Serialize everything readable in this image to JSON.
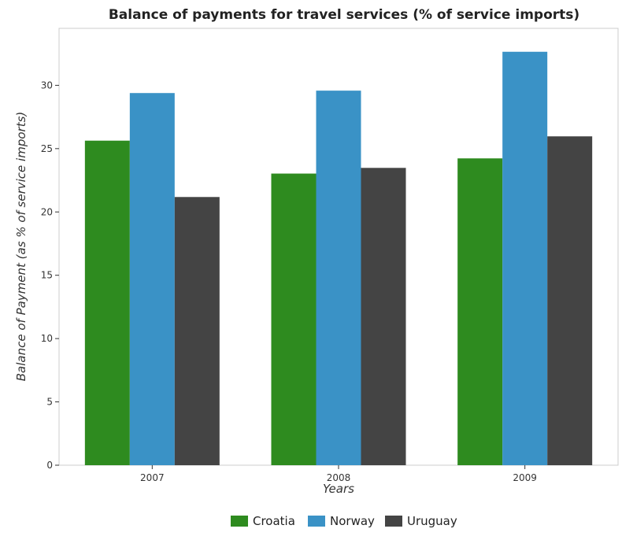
{
  "chart_data": {
    "type": "bar",
    "title": "Balance of payments for travel services (% of service imports)",
    "xlabel": "Years",
    "ylabel": "Balance of Payment (as % of service imports)",
    "categories": [
      "2007",
      "2008",
      "2009"
    ],
    "series": [
      {
        "name": "Croatia",
        "color": "#2e8b1f",
        "values": [
          25.63,
          23.03,
          24.23
        ]
      },
      {
        "name": "Norway",
        "color": "#3a92c6",
        "values": [
          29.39,
          29.58,
          32.65
        ]
      },
      {
        "name": "Uruguay",
        "color": "#444444",
        "values": [
          21.18,
          23.48,
          25.97
        ]
      }
    ],
    "ylim": [
      0,
      34.5
    ],
    "yticks": [
      0,
      5,
      10,
      15,
      20,
      25,
      30
    ],
    "grid": false,
    "legend_position": "bottom-center"
  }
}
